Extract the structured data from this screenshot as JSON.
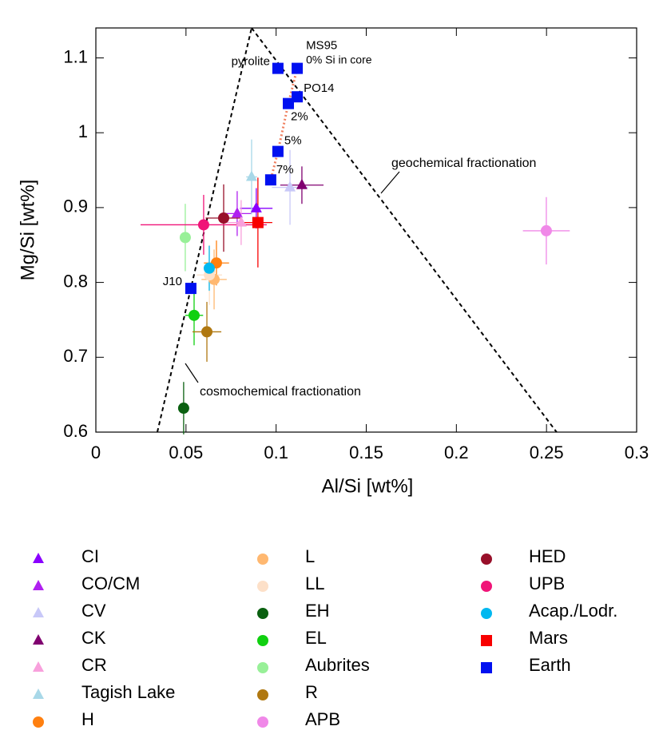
{
  "chart_data": {
    "type": "scatter",
    "xlabel": "Al/Si [wt%]",
    "ylabel": "Mg/Si [wt%]",
    "xlim": [
      0,
      0.3
    ],
    "ylim": [
      0.6,
      1.14
    ],
    "xticks": [
      0,
      0.05,
      0.1,
      0.15,
      0.2,
      0.25,
      0.3
    ],
    "yticks": [
      0.6,
      0.7,
      0.8,
      0.9,
      1,
      1.1
    ],
    "lines": [
      {
        "name": "cosmochemical fractionation",
        "x": [
          0.0341,
          0.0864
        ],
        "y": [
          0.6,
          1.14
        ]
      },
      {
        "name": "geochemical fractionation",
        "x": [
          0.0864,
          0.2556
        ],
        "y": [
          1.14,
          0.6
        ]
      }
    ],
    "annotation": "0% Si in core",
    "series": [
      {
        "name": "CI",
        "color": "#8a00ff",
        "marker": "triangle",
        "x": [
          0.089
        ],
        "y": [
          0.899
        ],
        "xerr": [
          0.009
        ],
        "yerr": [
          0.027
        ]
      },
      {
        "name": "CO/CM",
        "color": "#b020f0",
        "marker": "triangle",
        "x": [
          0.0784
        ],
        "y": [
          0.892
        ],
        "xerr": [
          0.008
        ],
        "yerr": [
          0.03
        ]
      },
      {
        "name": "CV",
        "color": "#c8c8f8",
        "marker": "triangle",
        "x": [
          0.1077
        ],
        "y": [
          0.927
        ],
        "xerr": [
          0.01
        ],
        "yerr": [
          0.05
        ]
      },
      {
        "name": "CK",
        "color": "#800070",
        "marker": "triangle",
        "x": [
          0.1143
        ],
        "y": [
          0.93
        ],
        "xerr": [
          0.012
        ],
        "yerr": [
          0.025
        ]
      },
      {
        "name": "CR",
        "color": "#f8a0dc",
        "marker": "triangle",
        "x": [
          0.0806
        ],
        "y": [
          0.88
        ],
        "xerr": [
          0.008
        ],
        "yerr": [
          0.03
        ]
      },
      {
        "name": "Tagish Lake",
        "color": "#a8d8e8",
        "marker": "triangle",
        "x": [
          0.0864
        ],
        "y": [
          0.941
        ],
        "xerr": [
          0.003
        ],
        "yerr": [
          0.05
        ]
      },
      {
        "name": "H",
        "color": "#ff8010",
        "marker": "circle",
        "x": [
          0.0669
        ],
        "y": [
          0.826
        ],
        "xerr": [
          0.007
        ],
        "yerr": [
          0.03
        ]
      },
      {
        "name": "L",
        "color": "#ffb870",
        "marker": "circle",
        "x": [
          0.0656
        ],
        "y": [
          0.804
        ],
        "xerr": [
          0.007
        ],
        "yerr": [
          0.04
        ]
      },
      {
        "name": "LL",
        "color": "#fde0c8",
        "marker": "circle",
        "x": [
          0.063
        ],
        "y": [
          0.81
        ],
        "xerr": [
          0.007
        ],
        "yerr": [
          0.04
        ]
      },
      {
        "name": "EH",
        "color": "#0a6010",
        "marker": "circle",
        "x": [
          0.0487
        ],
        "y": [
          0.632
        ],
        "xerr": [
          0.003
        ],
        "yerr": [
          0.035
        ]
      },
      {
        "name": "EL",
        "color": "#10d010",
        "marker": "circle",
        "x": [
          0.0545
        ],
        "y": [
          0.756
        ],
        "xerr": [
          0.005
        ],
        "yerr": [
          0.04
        ]
      },
      {
        "name": "Aubrites",
        "color": "#98f098",
        "marker": "circle",
        "x": [
          0.0496
        ],
        "y": [
          0.86
        ],
        "xerr": [
          0.003
        ],
        "yerr": [
          0.045
        ]
      },
      {
        "name": "R",
        "color": "#b07810",
        "marker": "circle",
        "x": [
          0.0616
        ],
        "y": [
          0.734
        ],
        "xerr": [
          0.008
        ],
        "yerr": [
          0.04
        ]
      },
      {
        "name": "APB",
        "color": "#f088e8",
        "marker": "circle",
        "x": [
          0.2499
        ],
        "y": [
          0.869
        ],
        "xerr": [
          0.013
        ],
        "yerr": [
          0.045
        ]
      },
      {
        "name": "HED",
        "color": "#98102a",
        "marker": "circle",
        "x": [
          0.0709
        ],
        "y": [
          0.886
        ],
        "xerr": [
          0.01
        ],
        "yerr": [
          0.045
        ]
      },
      {
        "name": "UPB",
        "color": "#f01478",
        "marker": "circle",
        "x": [
          0.0598
        ],
        "y": [
          0.877
        ],
        "xerr": [
          0.035
        ],
        "yerr": [
          0.04
        ]
      },
      {
        "name": "Acap./Lodr.",
        "color": "#00b8f0",
        "marker": "circle",
        "x": [
          0.0629
        ],
        "y": [
          0.819
        ],
        "xerr": [
          0.003
        ],
        "yerr": [
          0.03
        ]
      },
      {
        "name": "Mars",
        "color": "#f80000",
        "marker": "square",
        "x": [
          0.0899
        ],
        "y": [
          0.88
        ],
        "xerr": [
          0.008
        ],
        "yerr": [
          0.06
        ]
      },
      {
        "name": "Earth",
        "color": "#0010f0",
        "marker": "square",
        "x": [
          0.101,
          0.1117,
          0.1117,
          0.1068,
          0.101,
          0.097,
          0.0527
        ],
        "y": [
          1.086,
          1.086,
          1.048,
          1.039,
          0.975,
          0.937,
          0.792
        ],
        "labels": [
          "pyrolite",
          "MS95",
          "PO14",
          "2%",
          "5%",
          "7%",
          "J10"
        ]
      }
    ]
  }
}
